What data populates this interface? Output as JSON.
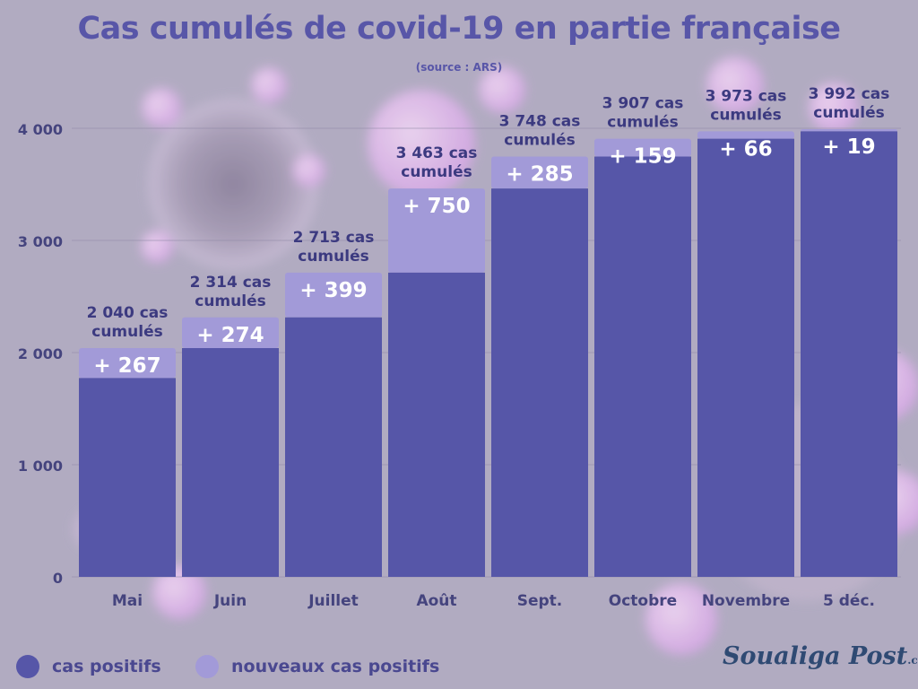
{
  "title": "Cas cumulés de covid-19 en partie française",
  "source": "(source : ARS)",
  "legend": [
    {
      "label": "cas positifs",
      "color": "#5656a8"
    },
    {
      "label": "nouveaux cas positifs",
      "color": "#a29ad8"
    }
  ],
  "logo": {
    "main": "Soualiga Post",
    "suffix": ".com"
  },
  "colors": {
    "base": "#5656a8",
    "new": "#a29ad8",
    "axis_text": "#45447e",
    "label_text": "#3c3a80",
    "white": "#ffffff"
  },
  "chart_data": {
    "type": "bar",
    "stacked": true,
    "categories": [
      "Mai",
      "Juin",
      "Juillet",
      "Août",
      "Sept.",
      "Octobre",
      "Novembre",
      "5 déc."
    ],
    "series": [
      {
        "name": "cas positifs",
        "values": [
          1773,
          2040,
          2314,
          2713,
          3463,
          3748,
          3907,
          3973
        ]
      },
      {
        "name": "nouveaux cas positifs",
        "values": [
          267,
          274,
          399,
          750,
          285,
          159,
          66,
          19
        ]
      }
    ],
    "totals": [
      2040,
      2314,
      2713,
      3463,
      3748,
      3907,
      3973,
      3992
    ],
    "total_labels": [
      [
        "2 040 cas",
        "cumulés"
      ],
      [
        "2 314 cas",
        "cumulés"
      ],
      [
        "2 713 cas",
        "cumulés"
      ],
      [
        "3 463 cas",
        "cumulés"
      ],
      [
        "3 748 cas",
        "cumulés"
      ],
      [
        "3 907 cas",
        "cumulés"
      ],
      [
        "3 973 cas",
        "cumulés"
      ],
      [
        "3 992 cas",
        "cumulés"
      ]
    ],
    "new_labels": [
      "+ 267",
      "+ 274",
      "+ 399",
      "+ 750",
      "+ 285",
      "+ 159",
      "+ 66",
      "+ 19"
    ],
    "yticks": [
      0,
      1000,
      2000,
      3000,
      4000
    ],
    "ytick_labels": [
      "0",
      "1 000",
      "2 000",
      "3 000",
      "4 000"
    ],
    "ylim": [
      0,
      4000
    ],
    "grid": true
  }
}
